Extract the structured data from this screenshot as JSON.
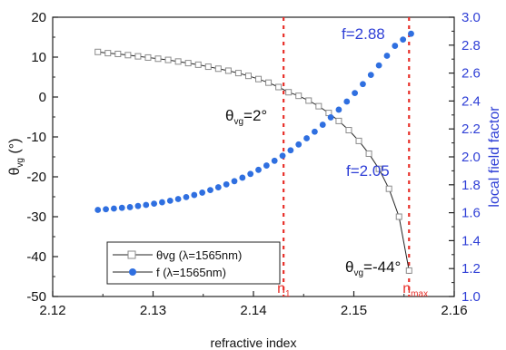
{
  "chart_data": {
    "type": "line",
    "x_axis": {
      "label": "refractive index",
      "min": 2.12,
      "max": 2.16,
      "ticks": [
        2.12,
        2.13,
        2.14,
        2.15,
        2.16
      ],
      "tick_labels": [
        "2.12",
        "2.13",
        "2.14",
        "2.15",
        "2.16"
      ]
    },
    "y_left": {
      "label_main": "θ",
      "label_sub": "vg",
      "label_unit": " (°)",
      "min": -50,
      "max": 20,
      "ticks": [
        20,
        10,
        0,
        -10,
        -20,
        -30,
        -40,
        -50
      ],
      "tick_labels": [
        "20",
        "10",
        "0",
        "-10",
        "-20",
        "-30",
        "-40",
        "-50"
      ]
    },
    "y_right": {
      "label": "local field factor",
      "min": 1.0,
      "max": 3.0,
      "ticks": [
        1.0,
        1.2,
        1.4,
        1.6,
        1.8,
        2.0,
        2.2,
        2.4,
        2.6,
        2.8,
        3.0
      ],
      "tick_labels": [
        "1.0",
        "1.2",
        "1.4",
        "1.6",
        "1.8",
        "2.0",
        "2.2",
        "2.4",
        "2.6",
        "2.8",
        "3.0"
      ],
      "color": "#2f3fd6"
    },
    "series": [
      {
        "name": "θvg (λ=1565nm)",
        "axis": "left",
        "marker": "open-square",
        "color": "#222222",
        "marker_color": "#8a8a8a",
        "points": [
          [
            2.1245,
            11.3
          ],
          [
            2.1255,
            11.0
          ],
          [
            2.1265,
            10.8
          ],
          [
            2.1275,
            10.5
          ],
          [
            2.1285,
            10.2
          ],
          [
            2.1295,
            9.9
          ],
          [
            2.1305,
            9.6
          ],
          [
            2.1315,
            9.3
          ],
          [
            2.1325,
            8.9
          ],
          [
            2.1335,
            8.5
          ],
          [
            2.1345,
            8.1
          ],
          [
            2.1355,
            7.6
          ],
          [
            2.1365,
            7.1
          ],
          [
            2.1375,
            6.6
          ],
          [
            2.1385,
            6.0
          ],
          [
            2.1395,
            5.3
          ],
          [
            2.1405,
            4.5
          ],
          [
            2.1415,
            3.6
          ],
          [
            2.1425,
            2.5
          ],
          [
            2.1435,
            1.2
          ],
          [
            2.1445,
            0.3
          ],
          [
            2.1455,
            -0.9
          ],
          [
            2.1465,
            -2.3
          ],
          [
            2.1475,
            -4.0
          ],
          [
            2.1485,
            -6.0
          ],
          [
            2.1495,
            -8.3
          ],
          [
            2.1505,
            -11.0
          ],
          [
            2.1515,
            -14.2
          ],
          [
            2.1525,
            -18.0
          ],
          [
            2.1535,
            -23.0
          ],
          [
            2.1545,
            -30.0
          ],
          [
            2.1555,
            -43.5
          ]
        ]
      },
      {
        "name": "f (λ=1565nm)",
        "axis": "right",
        "marker": "filled-circle",
        "color": "#2f6fe0",
        "points": [
          [
            2.1245,
            1.62
          ],
          [
            2.1253,
            1.625
          ],
          [
            2.1261,
            1.63
          ],
          [
            2.1269,
            1.635
          ],
          [
            2.1277,
            1.64
          ],
          [
            2.1285,
            1.648
          ],
          [
            2.1293,
            1.656
          ],
          [
            2.1301,
            1.665
          ],
          [
            2.1309,
            1.675
          ],
          [
            2.1317,
            1.686
          ],
          [
            2.1325,
            1.698
          ],
          [
            2.1333,
            1.712
          ],
          [
            2.1341,
            1.727
          ],
          [
            2.1349,
            1.744
          ],
          [
            2.1357,
            1.762
          ],
          [
            2.1365,
            1.782
          ],
          [
            2.1373,
            1.803
          ],
          [
            2.1381,
            1.826
          ],
          [
            2.1389,
            1.851
          ],
          [
            2.1397,
            1.878
          ],
          [
            2.1405,
            1.907
          ],
          [
            2.1413,
            1.938
          ],
          [
            2.1421,
            1.972
          ],
          [
            2.1429,
            2.008
          ],
          [
            2.1437,
            2.047
          ],
          [
            2.1445,
            2.089
          ],
          [
            2.1453,
            2.133
          ],
          [
            2.1461,
            2.18
          ],
          [
            2.1469,
            2.23
          ],
          [
            2.1477,
            2.283
          ],
          [
            2.1485,
            2.338
          ],
          [
            2.1493,
            2.396
          ],
          [
            2.1501,
            2.457
          ],
          [
            2.1509,
            2.521
          ],
          [
            2.1517,
            2.587
          ],
          [
            2.1525,
            2.655
          ],
          [
            2.1533,
            2.724
          ],
          [
            2.1541,
            2.795
          ],
          [
            2.1549,
            2.84
          ],
          [
            2.1557,
            2.882
          ]
        ]
      }
    ],
    "vlines": [
      {
        "x": 2.143,
        "label_main": "n",
        "label_sub": "1",
        "color": "#e8302a"
      },
      {
        "x": 2.1555,
        "label_main": "n",
        "label_sub": "max",
        "color": "#e8302a"
      }
    ],
    "annotations": [
      {
        "main": "θ",
        "sub": "vg",
        "rest": "=2°",
        "color": "#111111"
      },
      {
        "main": "θ",
        "sub": "vg",
        "rest": "=-44°",
        "color": "#111111"
      },
      {
        "main": "f=2.88",
        "sub": "",
        "rest": "",
        "color": "#2f3fd6"
      },
      {
        "main": "f=2.05",
        "sub": "",
        "rest": "",
        "color": "#2f3fd6"
      }
    ],
    "legend": {
      "position": "bottom-left"
    },
    "grid": false
  }
}
